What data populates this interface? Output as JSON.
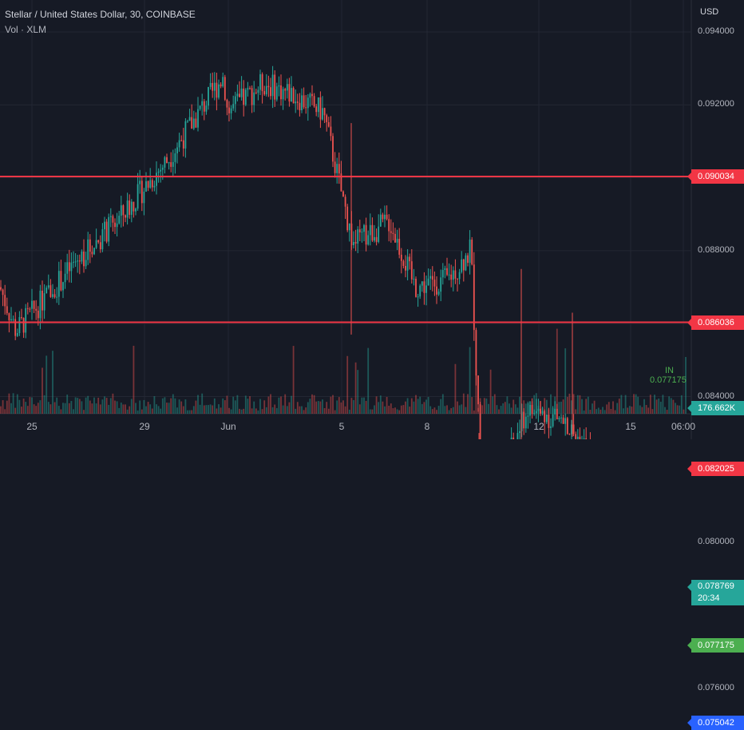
{
  "header": {
    "title": "Stellar / United States Dollar, 30, COINBASE",
    "subtitle": "Vol · XLM",
    "currency": "USD"
  },
  "colors": {
    "background": "#161a25",
    "grid": "#232733",
    "up": "#26a69a",
    "down": "#ef5350",
    "resistance": "#f23645",
    "support_green": "#4caf50",
    "support_blue": "#2962ff",
    "last_price": "#26a69a",
    "volume_badge": "#26a69a"
  },
  "chart_data": {
    "type": "candlestick",
    "title": "Stellar / United States Dollar, 30, COINBASE",
    "ylim": [
      0.0742,
      0.0952
    ],
    "y_ticks": [
      "0.094000",
      "0.092000",
      "0.090000",
      "0.088000",
      "0.086000",
      "0.084000",
      "0.082000",
      "0.080000",
      "0.076000"
    ],
    "x_ticks": [
      "25",
      "29",
      "Jun",
      "5",
      "8",
      "12",
      "15",
      "06:00"
    ],
    "grid": true,
    "price_series": [
      [
        "25",
        0.087
      ],
      [
        "26",
        0.0858
      ],
      [
        "27",
        0.0868
      ],
      [
        "28",
        0.0878
      ],
      [
        "29",
        0.0889
      ],
      [
        "30",
        0.0905
      ],
      [
        "31",
        0.0928
      ],
      [
        "Jun",
        0.0918
      ],
      [
        "2",
        0.0926
      ],
      [
        "3",
        0.0923
      ],
      [
        "4",
        0.0918
      ],
      [
        "5",
        0.0882
      ],
      [
        "6",
        0.0888
      ],
      [
        "7",
        0.087
      ],
      [
        "8",
        0.0872
      ],
      [
        "9",
        0.088
      ],
      [
        "10",
        0.081
      ],
      [
        "11",
        0.0825
      ],
      [
        "12",
        0.0836
      ],
      [
        "13",
        0.0834
      ],
      [
        "14",
        0.082
      ],
      [
        "15",
        0.077
      ],
      [
        "16",
        0.0775
      ],
      [
        "06:00",
        0.0788
      ]
    ],
    "horizontal_levels": [
      {
        "value": 0.090034,
        "label": "0.090034",
        "role": "resistance"
      },
      {
        "value": 0.086036,
        "label": "0.086036",
        "role": "resistance"
      },
      {
        "value": 0.082025,
        "label": "0.082025",
        "role": "resistance"
      },
      {
        "value": 0.077175,
        "label": "0.077175",
        "role": "support"
      },
      {
        "value": 0.075042,
        "label": "0.075042",
        "role": "support2"
      }
    ],
    "last_price": {
      "value": 0.078769,
      "label": "0.078769",
      "countdown": "20:34"
    },
    "volume_label": "176.662K",
    "annotation": {
      "text": "IN",
      "value": "0.077175"
    }
  }
}
